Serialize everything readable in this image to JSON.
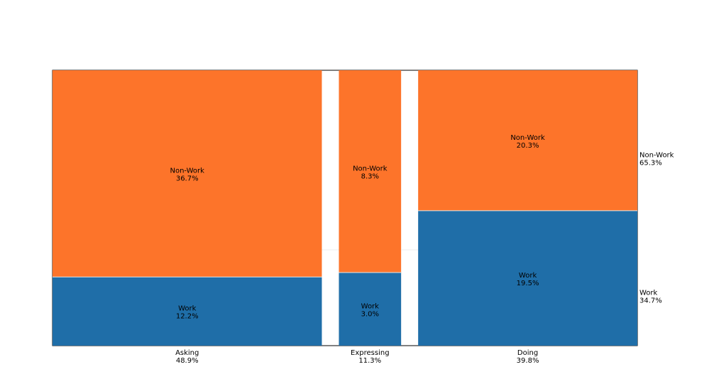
{
  "chart_data": {
    "type": "mosaic",
    "title": "",
    "xlabel": "",
    "ylabel": "",
    "categories": [
      {
        "name": "Asking",
        "share_label": "48.9%",
        "share": 48.9
      },
      {
        "name": "Expressing",
        "share_label": "11.3%",
        "share": 11.3
      },
      {
        "name": "Doing",
        "share_label": "39.8%",
        "share": 39.8
      }
    ],
    "series": [
      {
        "name": "Work",
        "color": "#1f6ea8",
        "values": [
          12.2,
          3.0,
          19.5
        ],
        "value_labels": [
          "12.2%",
          "3.0%",
          "19.5%"
        ]
      },
      {
        "name": "Non-Work",
        "color": "#fd742a",
        "values": [
          36.7,
          8.3,
          20.3
        ],
        "value_labels": [
          "36.7%",
          "8.3%",
          "20.3%"
        ]
      }
    ],
    "right_labels": [
      {
        "name": "Work",
        "value_label": "34.7%",
        "value": 34.7
      },
      {
        "name": "Non-Work",
        "value_label": "65.3%",
        "value": 65.3
      }
    ]
  }
}
